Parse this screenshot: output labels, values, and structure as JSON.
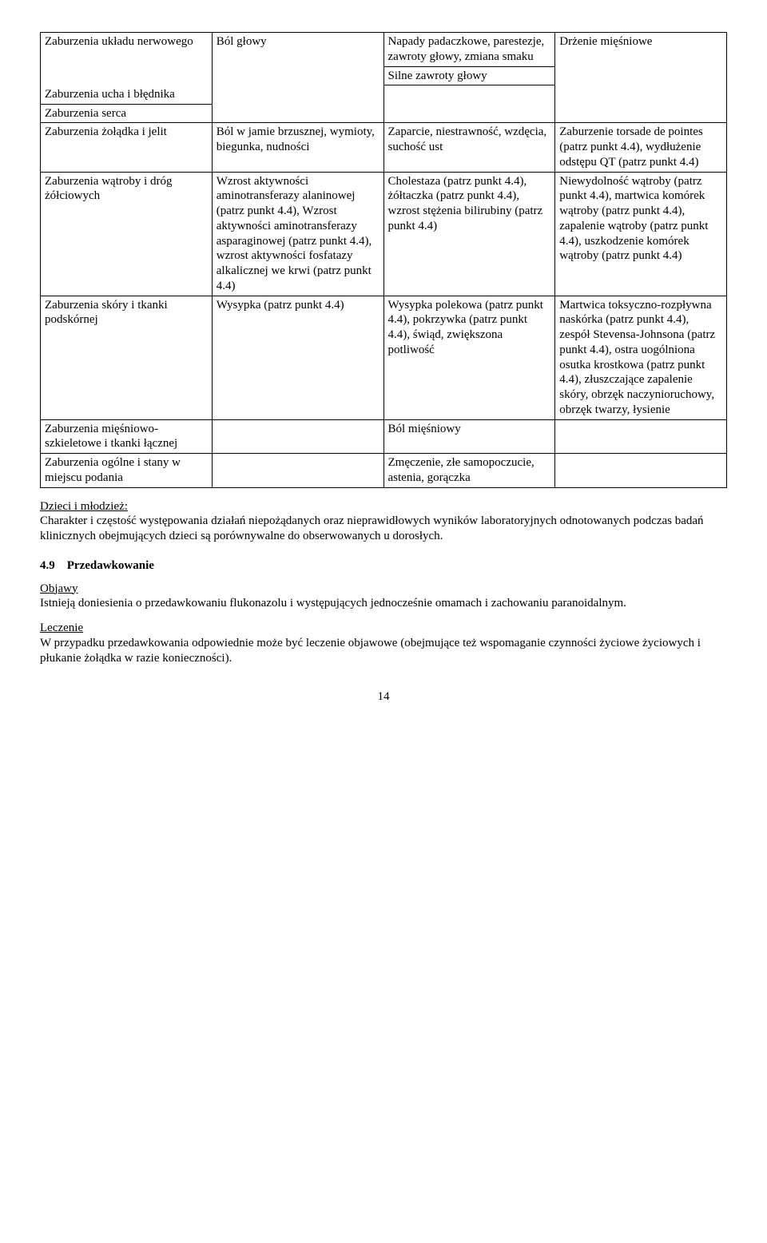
{
  "table": {
    "rows": [
      {
        "c1": "Zaburzenia układu nerwowego",
        "c2": "Ból głowy",
        "c3": "Napady padaczkowe, parestezje, zawroty głowy, zmiana smaku",
        "c4": "Drżenie mięśniowe"
      },
      {
        "c1": "Zaburzenia ucha i błędnika",
        "c2": "",
        "c3": "Silne zawroty głowy",
        "c4": ""
      },
      {
        "c1": "Zaburzenia serca",
        "c2": "",
        "c3": "",
        "c4": "Zaburzenie torsade de pointes (patrz punkt 4.4), wydłużenie odstępu QT (patrz punkt 4.4)"
      },
      {
        "c1": "Zaburzenia żołądka i jelit",
        "c2": "Ból w jamie brzusznej, wymioty, biegunka, nudności",
        "c3": "Zaparcie, niestrawność, wzdęcia, suchość ust",
        "c4": ""
      },
      {
        "c1": "Zaburzenia wątroby i dróg żółciowych",
        "c2": "Wzrost aktywności aminotransferazy alaninowej (patrz punkt 4.4), Wzrost aktywności aminotransferazy asparaginowej (patrz punkt 4.4), wzrost aktywności fosfatazy alkalicznej we krwi (patrz punkt 4.4)",
        "c3": "Cholestaza (patrz punkt 4.4), żółtaczka (patrz punkt 4.4), wzrost stężenia bilirubiny (patrz punkt 4.4)",
        "c4": "Niewydolność wątroby (patrz punkt 4.4), martwica komórek wątroby (patrz punkt 4.4), zapalenie wątroby (patrz punkt 4.4), uszkodzenie komórek wątroby (patrz punkt 4.4)"
      },
      {
        "c1": "Zaburzenia skóry i tkanki podskórnej",
        "c2": "Wysypka (patrz punkt 4.4)",
        "c3": "Wysypka polekowa (patrz punkt 4.4), pokrzywka (patrz punkt 4.4), świąd, zwiększona potliwość",
        "c4": "Martwica toksyczno-rozpływna naskórka (patrz punkt 4.4), zespół Stevensa-Johnsona (patrz punkt 4.4), ostra uogólniona osutka krostkowa (patrz punkt 4.4), złuszczające zapalenie skóry, obrzęk naczynioruchowy, obrzęk twarzy, łysienie"
      },
      {
        "c1": "Zaburzenia mięśniowo-szkieletowe i tkanki łącznej",
        "c2": "",
        "c3": "Ból mięśniowy",
        "c4": ""
      },
      {
        "c1": "Zaburzenia ogólne i stany w miejscu podania",
        "c2": "",
        "c3": "Zmęczenie, złe samopoczucie, astenia, gorączka",
        "c4": ""
      }
    ]
  },
  "children_heading": "Dzieci i młodzież:",
  "children_text": "Charakter i częstość występowania działań niepożądanych oraz nieprawidłowych wyników laboratoryjnych odnotowanych podczas badań klinicznych obejmujących dzieci są porównywalne do obserwowanych u dorosłych.",
  "section_num": "4.9",
  "section_title": "Przedawkowanie",
  "symptoms_heading": "Objawy",
  "symptoms_text": "Istnieją doniesienia o przedawkowaniu flukonazolu i występujących jednocześnie omamach i zachowaniu paranoidalnym.",
  "treatment_heading": "Leczenie",
  "treatment_text": "W przypadku przedawkowania odpowiednie może być leczenie objawowe (obejmujące też wspomaganie czynności życiowe życiowych i płukanie żołądka w razie konieczności).",
  "page_number": "14"
}
